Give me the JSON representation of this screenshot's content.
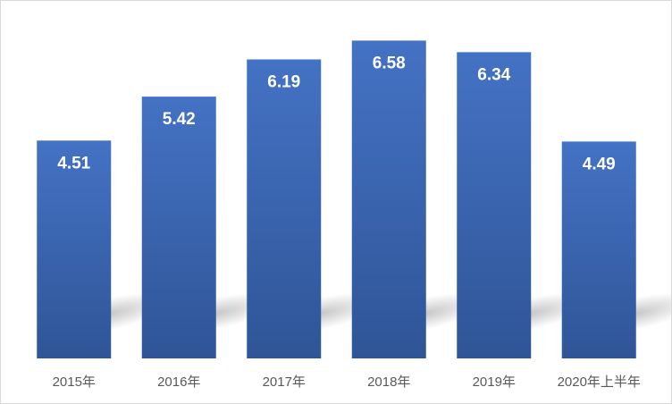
{
  "chart_data": {
    "type": "bar",
    "title": "",
    "xlabel": "",
    "ylabel": "",
    "categories": [
      "2015年",
      "2016年",
      "2017年",
      "2018年",
      "2019年",
      "2020年上半年"
    ],
    "values": [
      4.51,
      5.42,
      6.19,
      6.58,
      6.34,
      4.49
    ],
    "data_labels": [
      "4.51",
      "5.42",
      "6.19",
      "6.58",
      "6.34",
      "4.49"
    ],
    "ylim": [
      0,
      7.0
    ],
    "grid": false,
    "legend": "none",
    "colors": {
      "bar_top": "#4472c4",
      "bar_bottom": "#2f5597",
      "label_text": "#ffffff",
      "axis_text": "#595959"
    }
  }
}
